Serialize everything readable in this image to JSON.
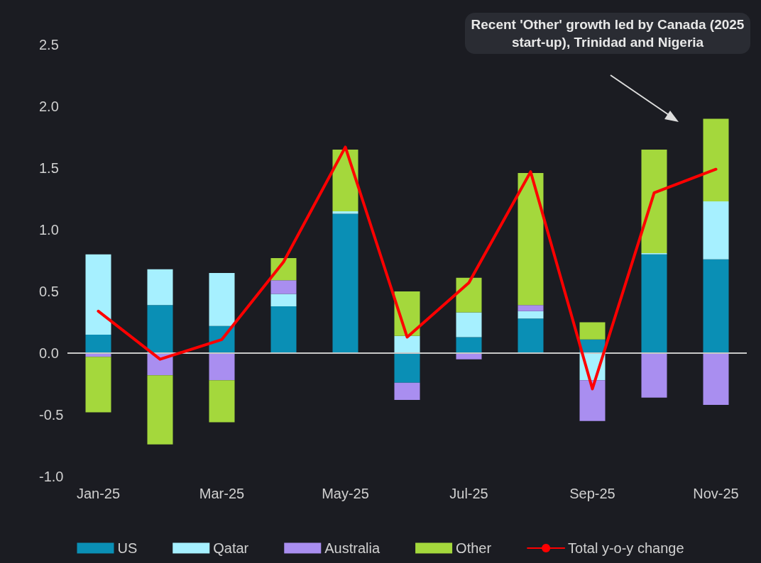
{
  "chart_data": {
    "type": "bar",
    "stacked": true,
    "categories": [
      "Jan-25",
      null,
      "Mar-25",
      null,
      "May-25",
      null,
      "Jul-25",
      null,
      "Sep-25",
      null,
      "Nov-25"
    ],
    "series": [
      {
        "name": "US",
        "color": "#0a8fb5",
        "values": [
          0.15,
          0.39,
          0.22,
          0.38,
          1.13,
          -0.24,
          0.13,
          0.28,
          0.11,
          0.8,
          0.76
        ]
      },
      {
        "name": "Qatar",
        "color": "#a6f0ff",
        "values": [
          0.65,
          0.29,
          0.43,
          0.1,
          0.02,
          0.14,
          0.2,
          0.06,
          -0.22,
          0.01,
          0.47
        ]
      },
      {
        "name": "Australia",
        "color": "#a98ef0",
        "values": [
          -0.03,
          -0.18,
          -0.22,
          0.11,
          null,
          -0.14,
          -0.05,
          0.05,
          -0.33,
          -0.36,
          -0.42
        ]
      },
      {
        "name": "Other",
        "color": "#a4d83c",
        "values": [
          -0.45,
          -0.56,
          -0.34,
          0.18,
          0.5,
          0.36,
          0.28,
          1.07,
          0.14,
          0.84,
          0.67
        ]
      },
      {
        "name": "Total y-o-y change",
        "type": "line",
        "color": "#ff0000",
        "values": [
          0.34,
          -0.05,
          0.11,
          0.74,
          1.67,
          0.13,
          0.57,
          1.47,
          -0.29,
          1.3,
          1.49
        ]
      }
    ],
    "ylim": [
      -1,
      2.5
    ],
    "yticks": [
      {
        "value": -1,
        "label": "-1.0"
      },
      -0.5,
      {
        "value": 0,
        "label": "0.0"
      },
      0.5,
      {
        "value": 1,
        "label": "1.0"
      },
      1.5,
      {
        "value": 2,
        "label": "2.0"
      },
      2.5
    ],
    "ref_lines": [
      {
        "axis": "y",
        "value": 0,
        "color": "#c8c8c8"
      }
    ],
    "annotations": [
      "Recent 'Other' growth led by Canada (2025 start-up), Trinidad and Nigeria"
    ],
    "grid": false,
    "legend": "bottom",
    "marker": "none",
    "line_style": "solid"
  }
}
